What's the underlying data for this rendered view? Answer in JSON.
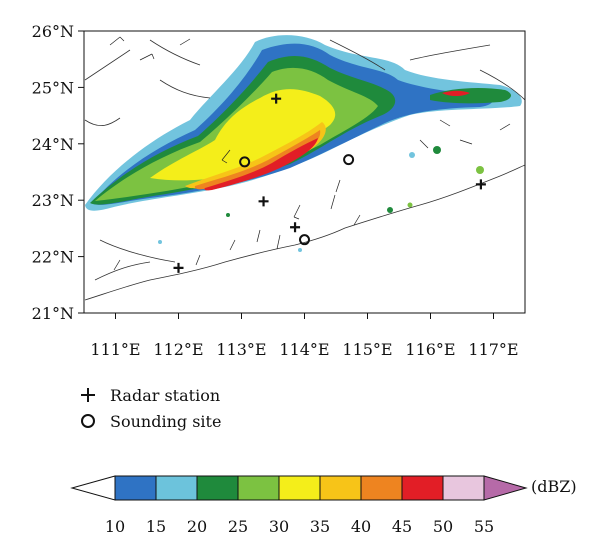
{
  "axes": {
    "lat_labels": [
      "26°N",
      "25°N",
      "24°N",
      "23°N",
      "22°N",
      "21°N"
    ],
    "lon_labels": [
      "111°E",
      "112°E",
      "113°E",
      "114°E",
      "115°E",
      "116°E",
      "117°E"
    ],
    "lat_range": [
      21,
      26
    ],
    "lon_range": [
      110.5,
      117.5
    ]
  },
  "legend": {
    "radar_label": "Radar station",
    "sounding_label": "Sounding site"
  },
  "colorbar": {
    "unit": "(dBZ)",
    "ticks": [
      "10",
      "15",
      "20",
      "25",
      "30",
      "35",
      "40",
      "45",
      "50",
      "55"
    ],
    "colors": [
      "#ffffff",
      "#2f73c4",
      "#6cc3dc",
      "#1f8a3c",
      "#7cc241",
      "#f4ee1a",
      "#f7c418",
      "#ee8420",
      "#e21e26",
      "#e8c6de",
      "#b66aa8"
    ]
  },
  "stations": {
    "radar": [
      [
        112.0,
        21.8
      ],
      [
        113.35,
        22.98
      ],
      [
        113.55,
        24.8
      ],
      [
        113.85,
        22.52
      ],
      [
        116.8,
        23.28
      ]
    ],
    "sounding": [
      [
        113.05,
        23.68
      ],
      [
        114.0,
        22.3
      ],
      [
        114.7,
        23.72
      ]
    ]
  },
  "reflectivity_dbz": {
    "max": 55,
    "core_lat_range": [
      23.0,
      24.1
    ],
    "band_lon_range": [
      110.5,
      117.5
    ]
  }
}
